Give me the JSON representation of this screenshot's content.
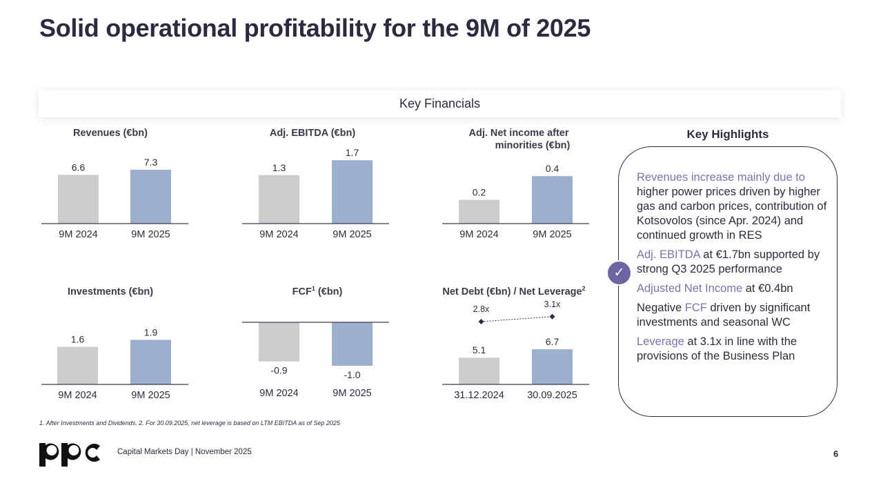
{
  "title": "Solid operational profitability for the 9M of 2025",
  "section_label": "Key Financials",
  "chart_data": [
    {
      "type": "bar",
      "title": "Revenues (€bn)",
      "categories": [
        "9M 2024",
        "9M 2025"
      ],
      "values": [
        6.6,
        7.3
      ],
      "value_labels": [
        "6.6",
        "7.3"
      ]
    },
    {
      "type": "bar",
      "title": "Adj. EBITDA (€bn)",
      "categories": [
        "9M 2024",
        "9M 2025"
      ],
      "values": [
        1.3,
        1.7
      ],
      "value_labels": [
        "1.3",
        "1.7"
      ]
    },
    {
      "type": "bar",
      "title": "Adj. Net income after minorities (€bn)",
      "title_lines": [
        "Adj. Net income after",
        "minorities (€bn)"
      ],
      "categories": [
        "9M 2024",
        "9M 2025"
      ],
      "values": [
        0.2,
        0.4
      ],
      "value_labels": [
        "0.2",
        "0.4"
      ]
    },
    {
      "type": "bar",
      "title": "Investments (€bn)",
      "categories": [
        "9M 2024",
        "9M 2025"
      ],
      "values": [
        1.6,
        1.9
      ],
      "value_labels": [
        "1.6",
        "1.9"
      ]
    },
    {
      "type": "bar",
      "title": "FCF¹ (€bn)",
      "title_main": "FCF",
      "title_sup": "1",
      "title_rest": " (€bn)",
      "categories": [
        "9M 2024",
        "9M 2025"
      ],
      "values": [
        -0.9,
        -1.0
      ],
      "value_labels": [
        "-0.9",
        "-1.0"
      ]
    },
    {
      "type": "bar",
      "title": "Net Debt (€bn) / Net Leverage²",
      "title_main": "Net Debt (€bn) / Net Leverage",
      "title_sup": "2",
      "categories": [
        "31.12.2024",
        "30.09.2025"
      ],
      "values": [
        5.1,
        6.7
      ],
      "value_labels": [
        "5.1",
        "6.7"
      ],
      "line_series": {
        "values": [
          2.8,
          3.1
        ],
        "labels": [
          "2.8x",
          "3.1x"
        ]
      }
    }
  ],
  "colors": {
    "bar_prior": "#cccccc",
    "bar_current": "#9bafce",
    "highlight": "#7b73ae",
    "text": "#2b2b3d"
  },
  "highlights": {
    "title": "Key Highlights",
    "icon": "check-circle-icon",
    "items": [
      {
        "hl": "Revenues increase mainly due to",
        "pre": "",
        "post": " higher power prices driven by higher gas and carbon prices, contribution of Kotsovolos (since Apr. 2024) and continued growth in RES"
      },
      {
        "hl": "Adj. EBITDA",
        "pre": "",
        "post": " at €1.7bn supported by strong Q3 2025 performance"
      },
      {
        "hl": "Adjusted Net Income",
        "pre": "",
        "post": " at €0.4bn"
      },
      {
        "hl": "FCF",
        "pre": "Negative ",
        "post": " driven by significant investments and seasonal WC"
      },
      {
        "hl": "Leverage",
        "pre": "",
        "post": " at 3.1x in line with the provisions of the Business Plan"
      }
    ]
  },
  "footnote": "1. After Investments  and Dividends. 2. For 30.09.2025, net leverage is based on LTM EBITDA as of Sep 2025",
  "footer": {
    "logo": "ppc-logo",
    "text": "Capital Markets Day | November 2025",
    "page_number": "6"
  }
}
